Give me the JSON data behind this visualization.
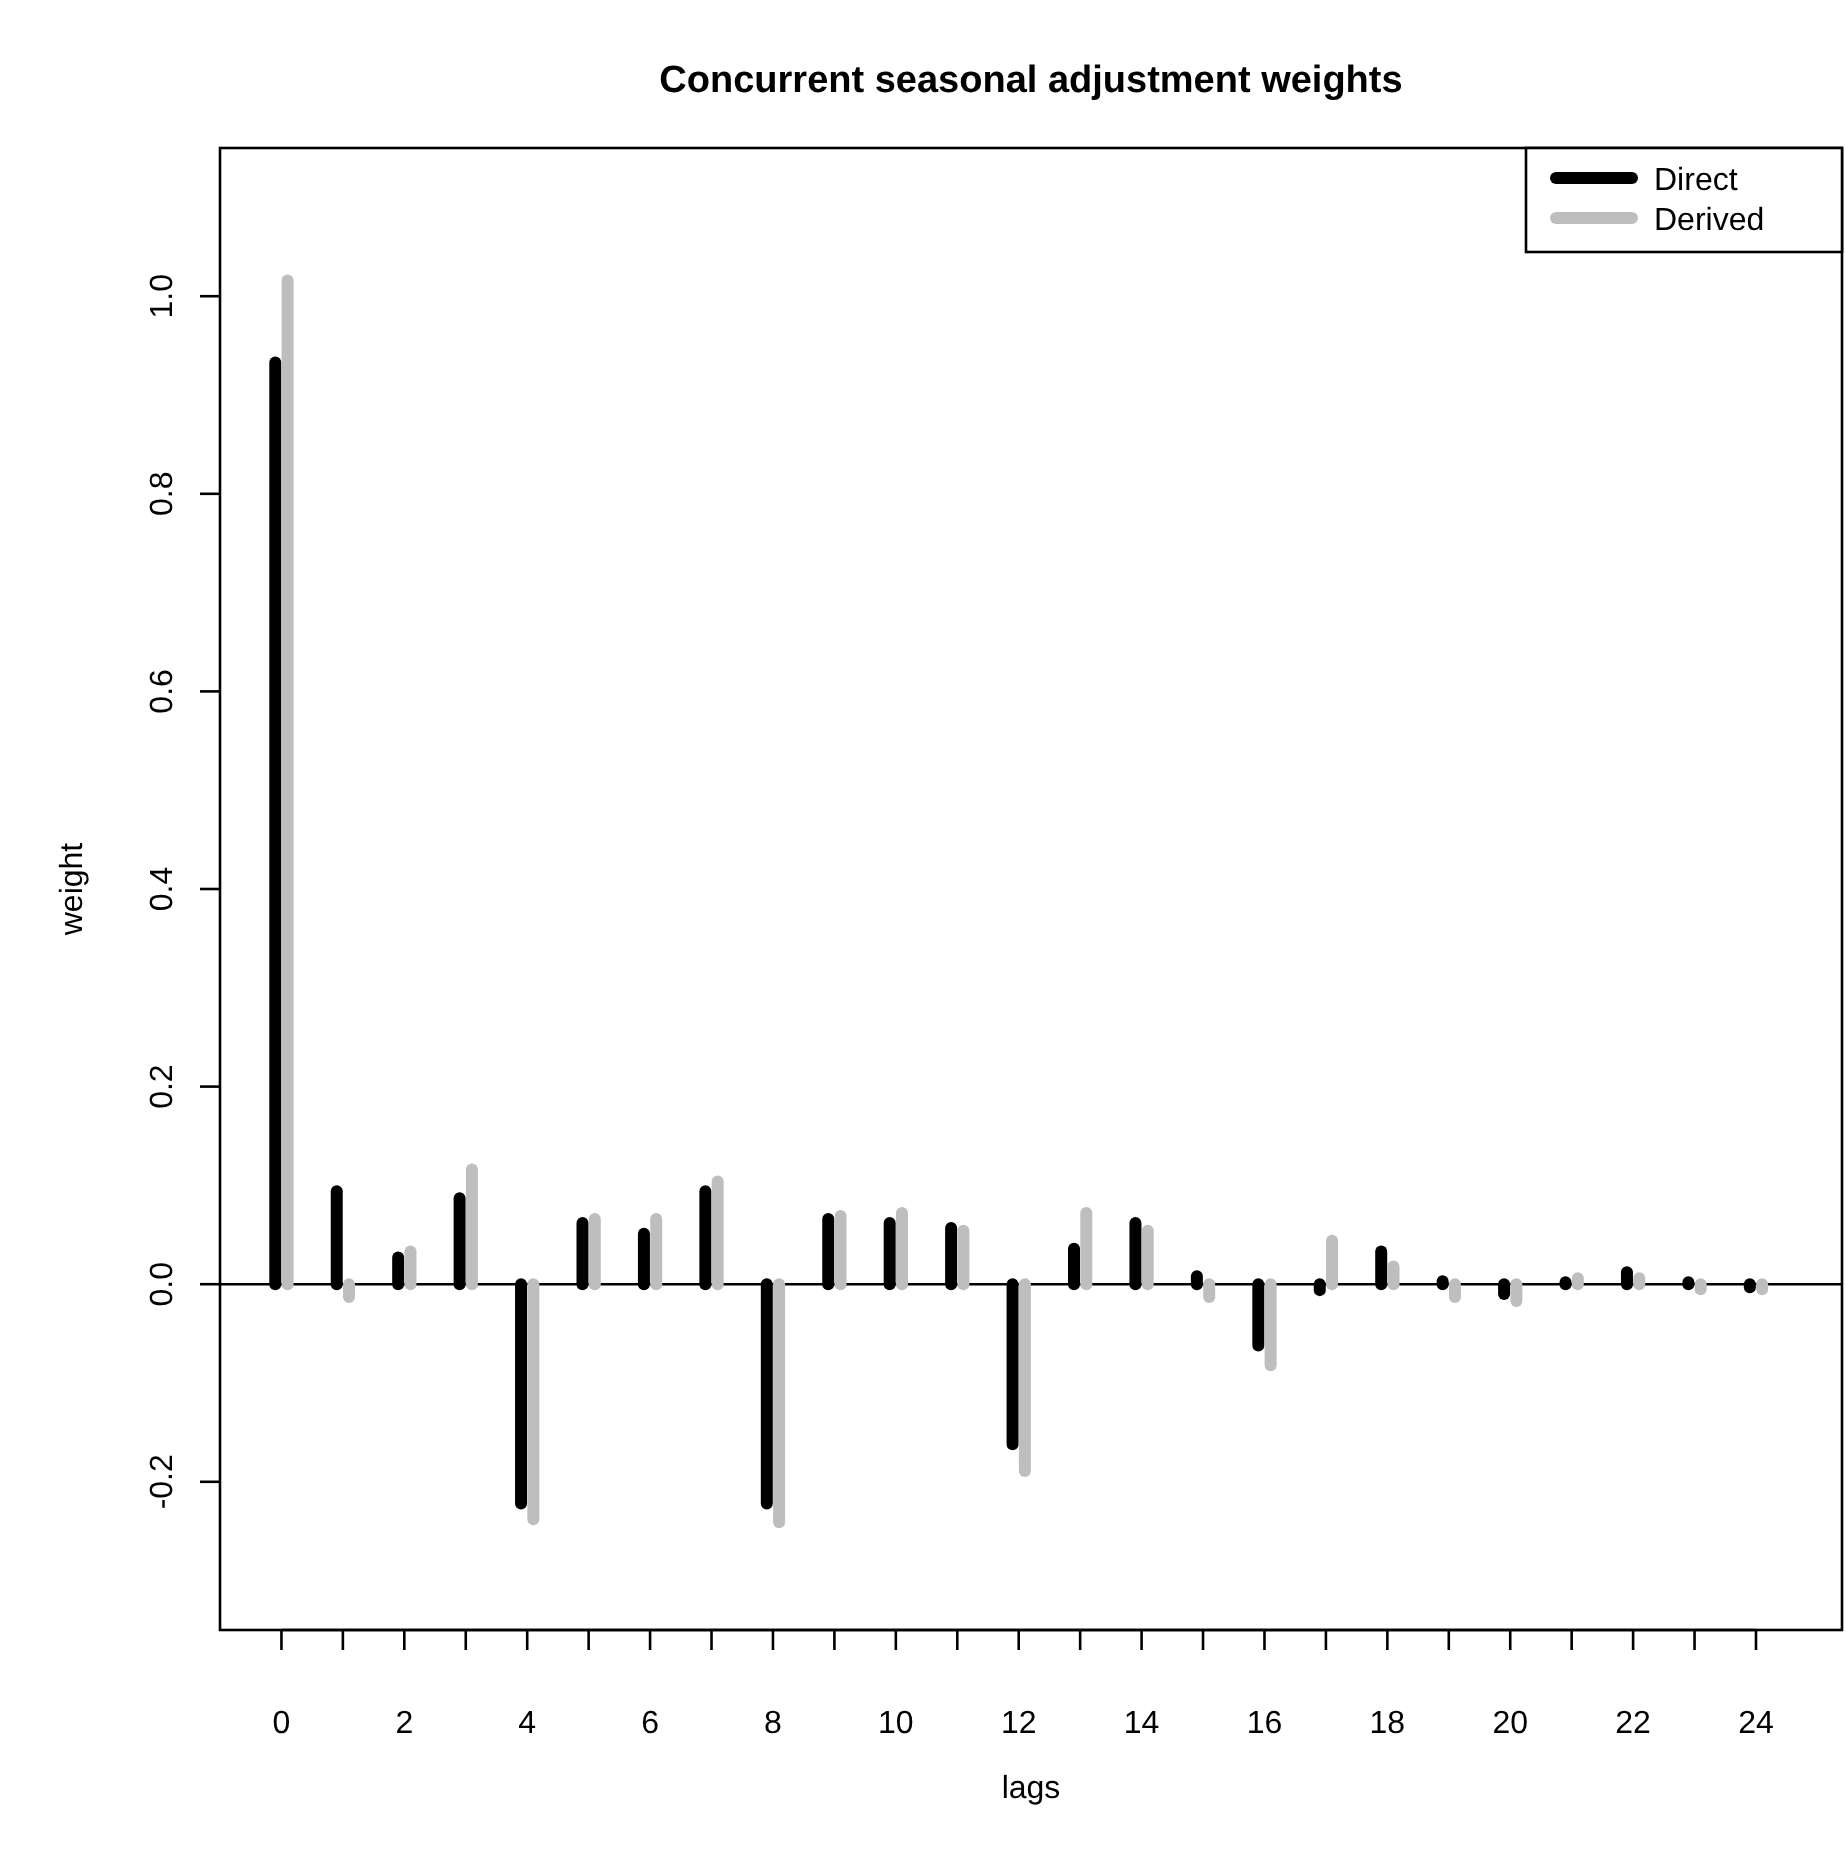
{
  "chart_data": {
    "type": "bar",
    "title": "Concurrent seasonal adjustment weights",
    "xlabel": "lags",
    "ylabel": "weight",
    "x": [
      0,
      1,
      2,
      3,
      4,
      5,
      6,
      7,
      8,
      9,
      10,
      11,
      12,
      13,
      14,
      15,
      16,
      17,
      18,
      19,
      20,
      21,
      22,
      23,
      24
    ],
    "series": [
      {
        "name": "Direct",
        "color": "#000000",
        "values": [
          0.933,
          0.094,
          0.027,
          0.087,
          -0.222,
          0.062,
          0.051,
          0.094,
          -0.222,
          0.066,
          0.062,
          0.057,
          -0.162,
          0.036,
          0.062,
          0.008,
          -0.062,
          -0.006,
          0.033,
          0.003,
          -0.01,
          0.002,
          0.012,
          0.002,
          -0.003
        ]
      },
      {
        "name": "Derived",
        "color": "#bebebe",
        "values": [
          1.016,
          -0.013,
          0.033,
          0.116,
          -0.238,
          0.066,
          0.066,
          0.104,
          -0.241,
          0.069,
          0.072,
          0.054,
          -0.189,
          0.072,
          0.054,
          -0.013,
          -0.082,
          0.044,
          0.018,
          -0.013,
          -0.017,
          0.006,
          0.006,
          -0.005,
          -0.005
        ]
      }
    ],
    "xlim": [
      -1,
      25.4
    ],
    "xticks": [
      {
        "value": 0,
        "label": "0"
      },
      {
        "value": 1,
        "label": null
      },
      {
        "value": 2,
        "label": "2"
      },
      {
        "value": 3,
        "label": null
      },
      {
        "value": 4,
        "label": "4"
      },
      {
        "value": 5,
        "label": null
      },
      {
        "value": 6,
        "label": "6"
      },
      {
        "value": 7,
        "label": null
      },
      {
        "value": 8,
        "label": "8"
      },
      {
        "value": 9,
        "label": null
      },
      {
        "value": 10,
        "label": "10"
      },
      {
        "value": 11,
        "label": null
      },
      {
        "value": 12,
        "label": "12"
      },
      {
        "value": 13,
        "label": null
      },
      {
        "value": 14,
        "label": "14"
      },
      {
        "value": 15,
        "label": null
      },
      {
        "value": 16,
        "label": "16"
      },
      {
        "value": 17,
        "label": null
      },
      {
        "value": 18,
        "label": "18"
      },
      {
        "value": 19,
        "label": null
      },
      {
        "value": 20,
        "label": "20"
      },
      {
        "value": 21,
        "label": null
      },
      {
        "value": 22,
        "label": "22"
      },
      {
        "value": 23,
        "label": null
      },
      {
        "value": 24,
        "label": "24"
      }
    ],
    "ylim": [
      -0.35,
      1.15
    ],
    "yticks": [
      {
        "value": -0.2,
        "label": "-0.2"
      },
      {
        "value": 0,
        "label": "0.0"
      },
      {
        "value": 0.2,
        "label": "0.2"
      },
      {
        "value": 0.4,
        "label": "0.4"
      },
      {
        "value": 0.6,
        "label": "0.6"
      },
      {
        "value": 0.8,
        "label": "0.8"
      },
      {
        "value": 1,
        "label": "1.0"
      }
    ],
    "ref_lines": [
      {
        "axis": "y",
        "value": 0,
        "color": "#000000"
      }
    ],
    "legend": "top right",
    "grid": false
  }
}
